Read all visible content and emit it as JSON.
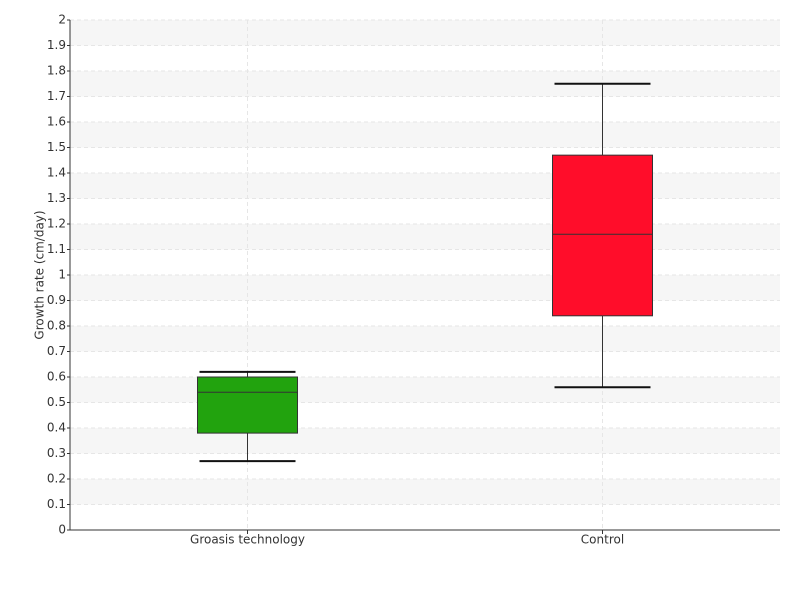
{
  "chart_data": {
    "type": "box",
    "y_label": "Growth rate (cm/day)",
    "categories": [
      "Groasis technology",
      "Control"
    ],
    "boxes": [
      {
        "min": 0.27,
        "q1": 0.38,
        "median": 0.54,
        "q3": 0.6,
        "max": 0.62,
        "color": "#22a30e"
      },
      {
        "min": 0.56,
        "q1": 0.84,
        "median": 1.16,
        "q3": 1.47,
        "max": 1.75,
        "color": "#ff0d2a"
      }
    ],
    "ylim": [
      0,
      2
    ],
    "yticks": [
      0,
      0.1,
      0.2,
      0.3,
      0.4,
      0.5,
      0.6,
      0.7,
      0.8,
      0.9,
      1,
      1.1,
      1.2,
      1.3,
      1.4,
      1.5,
      1.6,
      1.7,
      1.8,
      1.9,
      2
    ],
    "grid": true
  }
}
